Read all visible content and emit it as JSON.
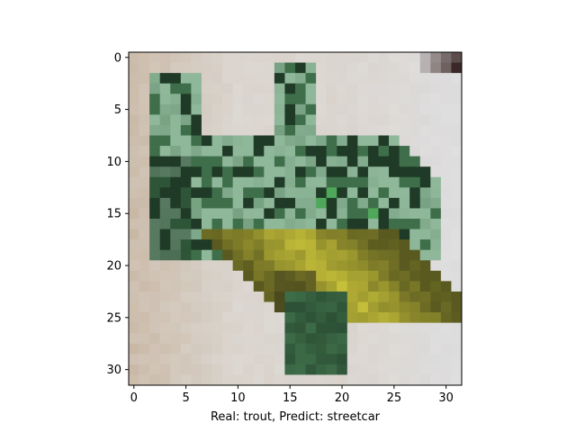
{
  "chart_data": {
    "type": "heatmap",
    "xlabel": "Real: trout, Predict: streetcar",
    "ylabel": "",
    "title": "",
    "xlim": [
      -0.5,
      31.5
    ],
    "ylim": [
      31.5,
      -0.5
    ],
    "xticks": [
      "0",
      "5",
      "10",
      "15",
      "20",
      "25",
      "30"
    ],
    "yticks": [
      "0",
      "5",
      "10",
      "15",
      "20",
      "25",
      "30"
    ],
    "grid": false,
    "image_size": [
      32,
      32
    ],
    "palette": {
      "bg_light": "#d9d3cc",
      "bg_warm": "#c9b8a6",
      "bg_cool": "#dfe3ea",
      "dark_green": "#1f3a26",
      "mid_green": "#3f6f4a",
      "bright_green": "#4fa85a",
      "pale_green": "#8fb79a",
      "yellow": "#c9c23a",
      "olive": "#5a5a20",
      "dark": "#1a1a14",
      "brown_corner": "#3a2626"
    }
  }
}
